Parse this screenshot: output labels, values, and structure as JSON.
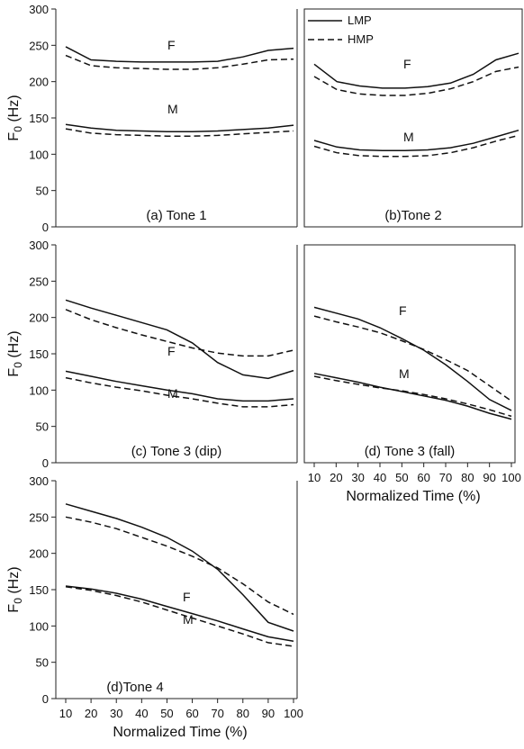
{
  "legend": {
    "lmp_label": "LMP",
    "hmp_label": "HMP"
  },
  "y_axis_title_main": "F",
  "y_axis_title_sub": "0",
  "y_axis_title_unit": " (Hz)",
  "x_axis_title": "Normalized Time (%)",
  "x_ticks": [
    "10",
    "20",
    "30",
    "40",
    "50",
    "60",
    "70",
    "80",
    "90",
    "100"
  ],
  "y_ticks": [
    "0",
    "50",
    "100",
    "150",
    "200",
    "250",
    "300"
  ],
  "series_labels": {
    "female": "F",
    "male": "M"
  },
  "chart_data": [
    {
      "type": "line",
      "title": "(a) Tone 1",
      "x": [
        10,
        20,
        30,
        40,
        50,
        60,
        70,
        80,
        90,
        100
      ],
      "ylim": [
        0,
        300
      ],
      "series": [
        {
          "name": "LMP",
          "group": "F",
          "values": [
            248,
            230,
            228,
            227,
            227,
            227,
            228,
            234,
            243,
            246
          ]
        },
        {
          "name": "HMP",
          "group": "F",
          "values": [
            236,
            222,
            219,
            218,
            217,
            217,
            219,
            224,
            230,
            231
          ]
        },
        {
          "name": "LMP",
          "group": "M",
          "values": [
            141,
            136,
            133,
            132,
            131,
            131,
            132,
            134,
            136,
            140
          ]
        },
        {
          "name": "HMP",
          "group": "M",
          "values": [
            135,
            129,
            127,
            126,
            125,
            125,
            126,
            128,
            130,
            132
          ]
        }
      ]
    },
    {
      "type": "line",
      "title": "(b)Tone 2",
      "x": [
        10,
        20,
        30,
        40,
        50,
        60,
        70,
        80,
        90,
        100
      ],
      "ylim": [
        0,
        300
      ],
      "series": [
        {
          "name": "LMP",
          "group": "F",
          "values": [
            224,
            200,
            194,
            191,
            191,
            193,
            198,
            210,
            230,
            239
          ]
        },
        {
          "name": "HMP",
          "group": "F",
          "values": [
            207,
            189,
            183,
            181,
            181,
            184,
            190,
            200,
            214,
            220
          ]
        },
        {
          "name": "LMP",
          "group": "M",
          "values": [
            119,
            110,
            106,
            105,
            105,
            106,
            109,
            115,
            124,
            133
          ]
        },
        {
          "name": "HMP",
          "group": "M",
          "values": [
            111,
            102,
            98,
            97,
            97,
            98,
            102,
            109,
            118,
            126
          ]
        }
      ]
    },
    {
      "type": "line",
      "title": "(c) Tone 3 (dip)",
      "x": [
        10,
        20,
        30,
        40,
        50,
        60,
        70,
        80,
        90,
        100
      ],
      "ylim": [
        0,
        300
      ],
      "series": [
        {
          "name": "LMP",
          "group": "F",
          "values": [
            224,
            213,
            203,
            193,
            183,
            165,
            138,
            121,
            116,
            127
          ]
        },
        {
          "name": "HMP",
          "group": "F",
          "values": [
            211,
            197,
            186,
            176,
            167,
            158,
            151,
            147,
            147,
            155
          ]
        },
        {
          "name": "LMP",
          "group": "M",
          "values": [
            126,
            119,
            112,
            106,
            100,
            95,
            88,
            85,
            85,
            88
          ]
        },
        {
          "name": "HMP",
          "group": "M",
          "values": [
            117,
            110,
            104,
            99,
            93,
            88,
            82,
            77,
            77,
            80
          ]
        }
      ]
    },
    {
      "type": "line",
      "title": "(d) Tone 3 (fall)",
      "x": [
        10,
        20,
        30,
        40,
        50,
        60,
        70,
        80,
        90,
        100
      ],
      "ylim": [
        0,
        300
      ],
      "series": [
        {
          "name": "LMP",
          "group": "F",
          "values": [
            214,
            206,
            198,
            186,
            171,
            155,
            135,
            112,
            87,
            72
          ]
        },
        {
          "name": "HMP",
          "group": "F",
          "values": [
            202,
            194,
            187,
            179,
            168,
            156,
            142,
            127,
            106,
            85
          ]
        },
        {
          "name": "LMP",
          "group": "M",
          "values": [
            123,
            117,
            111,
            104,
            98,
            92,
            86,
            78,
            68,
            60
          ]
        },
        {
          "name": "HMP",
          "group": "M",
          "values": [
            119,
            113,
            108,
            103,
            99,
            94,
            88,
            81,
            73,
            64
          ]
        }
      ]
    },
    {
      "type": "line",
      "title": "(d)Tone 4",
      "x": [
        10,
        20,
        30,
        40,
        50,
        60,
        70,
        80,
        90,
        100
      ],
      "ylim": [
        0,
        300
      ],
      "series": [
        {
          "name": "LMP",
          "group": "F",
          "values": [
            268,
            258,
            248,
            236,
            222,
            203,
            178,
            143,
            105,
            93
          ]
        },
        {
          "name": "HMP",
          "group": "F",
          "values": [
            250,
            243,
            234,
            222,
            210,
            196,
            180,
            158,
            133,
            116
          ]
        },
        {
          "name": "LMP",
          "group": "M",
          "values": [
            155,
            151,
            145,
            137,
            127,
            117,
            107,
            96,
            85,
            79
          ]
        },
        {
          "name": "HMP",
          "group": "M",
          "values": [
            154,
            149,
            142,
            133,
            122,
            111,
            100,
            89,
            77,
            72
          ]
        }
      ]
    }
  ]
}
